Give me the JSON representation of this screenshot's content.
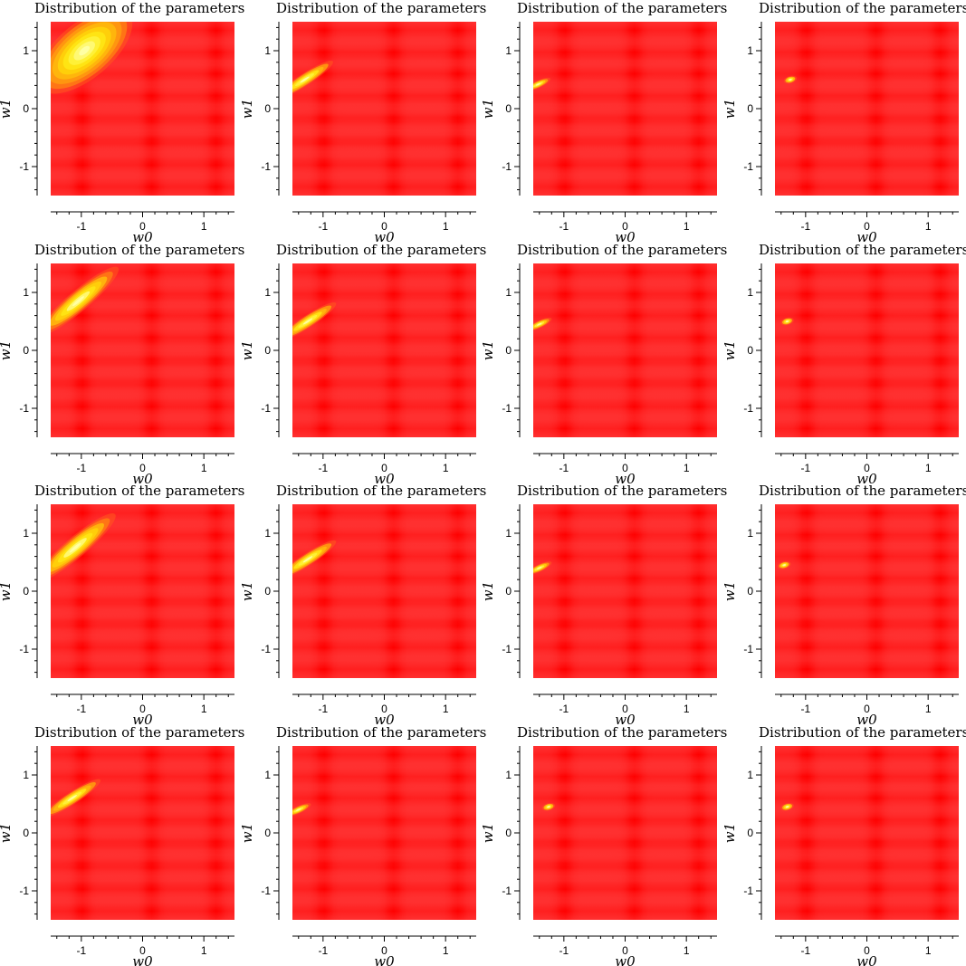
{
  "figure": {
    "rows": 4,
    "cols": 4,
    "background_color": "#ff0000",
    "peak_color": "#ffffaa"
  },
  "chart_data": [
    {
      "type": "heatmap",
      "title": "Distribution of the parameters",
      "xlabel": "w0",
      "ylabel": "w1",
      "xlim": [
        -1.5,
        1.5
      ],
      "ylim": [
        -1.5,
        1.5
      ],
      "xticks": [
        "-1",
        "0",
        "1"
      ],
      "yticks": [
        "1",
        "0",
        "-1"
      ],
      "peak": {
        "w0": -0.95,
        "w1": 1.0
      },
      "spread": "broad"
    },
    {
      "type": "heatmap",
      "title": "Distribution of the parameters",
      "xlabel": "w0",
      "ylabel": "w1",
      "xlim": [
        -1.5,
        1.5
      ],
      "ylim": [
        -1.5,
        1.5
      ],
      "xticks": [
        "-1",
        "0",
        "1"
      ],
      "yticks": [
        "1",
        "0",
        "-1"
      ],
      "peak": {
        "w0": -1.3,
        "w1": 0.5
      },
      "spread": "elongated"
    },
    {
      "type": "heatmap",
      "title": "Distribution of the parameters",
      "xlabel": "w0",
      "ylabel": "w1",
      "xlim": [
        -1.5,
        1.5
      ],
      "ylim": [
        -1.5,
        1.5
      ],
      "xticks": [
        "-1",
        "0",
        "1"
      ],
      "yticks": [
        "1",
        "0",
        "-1"
      ],
      "peak": {
        "w0": -1.42,
        "w1": 0.42
      },
      "spread": "narrow"
    },
    {
      "type": "heatmap",
      "title": "Distribution of the parameters",
      "xlabel": "w0",
      "ylabel": "w1",
      "xlim": [
        -1.5,
        1.5
      ],
      "ylim": [
        -1.5,
        1.5
      ],
      "xticks": [
        "-1",
        "0",
        "1"
      ],
      "yticks": [
        "1",
        "0",
        "-1"
      ],
      "peak": {
        "w0": -1.25,
        "w1": 0.5
      },
      "spread": "compact"
    },
    {
      "type": "heatmap",
      "title": "Distribution of the parameters",
      "xlabel": "w0",
      "ylabel": "w1",
      "xlim": [
        -1.5,
        1.5
      ],
      "ylim": [
        -1.5,
        1.5
      ],
      "xticks": [
        "-1",
        "0",
        "1"
      ],
      "yticks": [
        "1",
        "0",
        "-1"
      ],
      "peak": {
        "w0": -1.05,
        "w1": 0.85
      },
      "spread": "elongated-wide"
    },
    {
      "type": "heatmap",
      "title": "Distribution of the parameters",
      "xlabel": "w0",
      "ylabel": "w1",
      "xlim": [
        -1.5,
        1.5
      ],
      "ylim": [
        -1.5,
        1.5
      ],
      "xticks": [
        "-1",
        "0",
        "1"
      ],
      "yticks": [
        "1",
        "0",
        "-1"
      ],
      "peak": {
        "w0": -1.25,
        "w1": 0.5
      },
      "spread": "elongated"
    },
    {
      "type": "heatmap",
      "title": "Distribution of the parameters",
      "xlabel": "w0",
      "ylabel": "w1",
      "xlim": [
        -1.5,
        1.5
      ],
      "ylim": [
        -1.5,
        1.5
      ],
      "xticks": [
        "-1",
        "0",
        "1"
      ],
      "yticks": [
        "1",
        "0",
        "-1"
      ],
      "peak": {
        "w0": -1.4,
        "w1": 0.45
      },
      "spread": "narrow"
    },
    {
      "type": "heatmap",
      "title": "Distribution of the parameters",
      "xlabel": "w0",
      "ylabel": "w1",
      "xlim": [
        -1.5,
        1.5
      ],
      "ylim": [
        -1.5,
        1.5
      ],
      "xticks": [
        "-1",
        "0",
        "1"
      ],
      "yticks": [
        "1",
        "0",
        "-1"
      ],
      "peak": {
        "w0": -1.3,
        "w1": 0.5
      },
      "spread": "compact"
    },
    {
      "type": "heatmap",
      "title": "Distribution of the parameters",
      "xlabel": "w0",
      "ylabel": "w1",
      "xlim": [
        -1.5,
        1.5
      ],
      "ylim": [
        -1.5,
        1.5
      ],
      "xticks": [
        "-1",
        "0",
        "1"
      ],
      "yticks": [
        "1",
        "0",
        "-1"
      ],
      "peak": {
        "w0": -1.1,
        "w1": 0.75
      },
      "spread": "elongated-wide"
    },
    {
      "type": "heatmap",
      "title": "Distribution of the parameters",
      "xlabel": "w0",
      "ylabel": "w1",
      "xlim": [
        -1.5,
        1.5
      ],
      "ylim": [
        -1.5,
        1.5
      ],
      "xticks": [
        "-1",
        "0",
        "1"
      ],
      "yticks": [
        "1",
        "0",
        "-1"
      ],
      "peak": {
        "w0": -1.25,
        "w1": 0.55
      },
      "spread": "elongated"
    },
    {
      "type": "heatmap",
      "title": "Distribution of the parameters",
      "xlabel": "w0",
      "ylabel": "w1",
      "xlim": [
        -1.5,
        1.5
      ],
      "ylim": [
        -1.5,
        1.5
      ],
      "xticks": [
        "-1",
        "0",
        "1"
      ],
      "yticks": [
        "1",
        "0",
        "-1"
      ],
      "peak": {
        "w0": -1.4,
        "w1": 0.4
      },
      "spread": "narrow"
    },
    {
      "type": "heatmap",
      "title": "Distribution of the parameters",
      "xlabel": "w0",
      "ylabel": "w1",
      "xlim": [
        -1.5,
        1.5
      ],
      "ylim": [
        -1.5,
        1.5
      ],
      "xticks": [
        "-1",
        "0",
        "1"
      ],
      "yticks": [
        "1",
        "0",
        "-1"
      ],
      "peak": {
        "w0": -1.35,
        "w1": 0.45
      },
      "spread": "compact"
    },
    {
      "type": "heatmap",
      "title": "Distribution of the parameters",
      "xlabel": "w0",
      "ylabel": "w1",
      "xlim": [
        -1.5,
        1.5
      ],
      "ylim": [
        -1.5,
        1.5
      ],
      "xticks": [
        "-1",
        "0",
        "1"
      ],
      "yticks": [
        "1",
        "0",
        "-1"
      ],
      "peak": {
        "w0": -1.15,
        "w1": 0.6
      },
      "spread": "elongated"
    },
    {
      "type": "heatmap",
      "title": "Distribution of the parameters",
      "xlabel": "w0",
      "ylabel": "w1",
      "xlim": [
        -1.5,
        1.5
      ],
      "ylim": [
        -1.5,
        1.5
      ],
      "xticks": [
        "-1",
        "0",
        "1"
      ],
      "yticks": [
        "1",
        "0",
        "-1"
      ],
      "peak": {
        "w0": -1.4,
        "w1": 0.4
      },
      "spread": "narrow"
    },
    {
      "type": "heatmap",
      "title": "Distribution of the parameters",
      "xlabel": "w0",
      "ylabel": "w1",
      "xlim": [
        -1.5,
        1.5
      ],
      "ylim": [
        -1.5,
        1.5
      ],
      "xticks": [
        "-1",
        "0",
        "1"
      ],
      "yticks": [
        "1",
        "0",
        "-1"
      ],
      "peak": {
        "w0": -1.25,
        "w1": 0.45
      },
      "spread": "compact"
    },
    {
      "type": "heatmap",
      "title": "Distribution of the parameters",
      "xlabel": "w0",
      "ylabel": "w1",
      "xlim": [
        -1.5,
        1.5
      ],
      "ylim": [
        -1.5,
        1.5
      ],
      "xticks": [
        "-1",
        "0",
        "1"
      ],
      "yticks": [
        "1",
        "0",
        "-1"
      ],
      "peak": {
        "w0": -1.3,
        "w1": 0.45
      },
      "spread": "compact"
    }
  ]
}
